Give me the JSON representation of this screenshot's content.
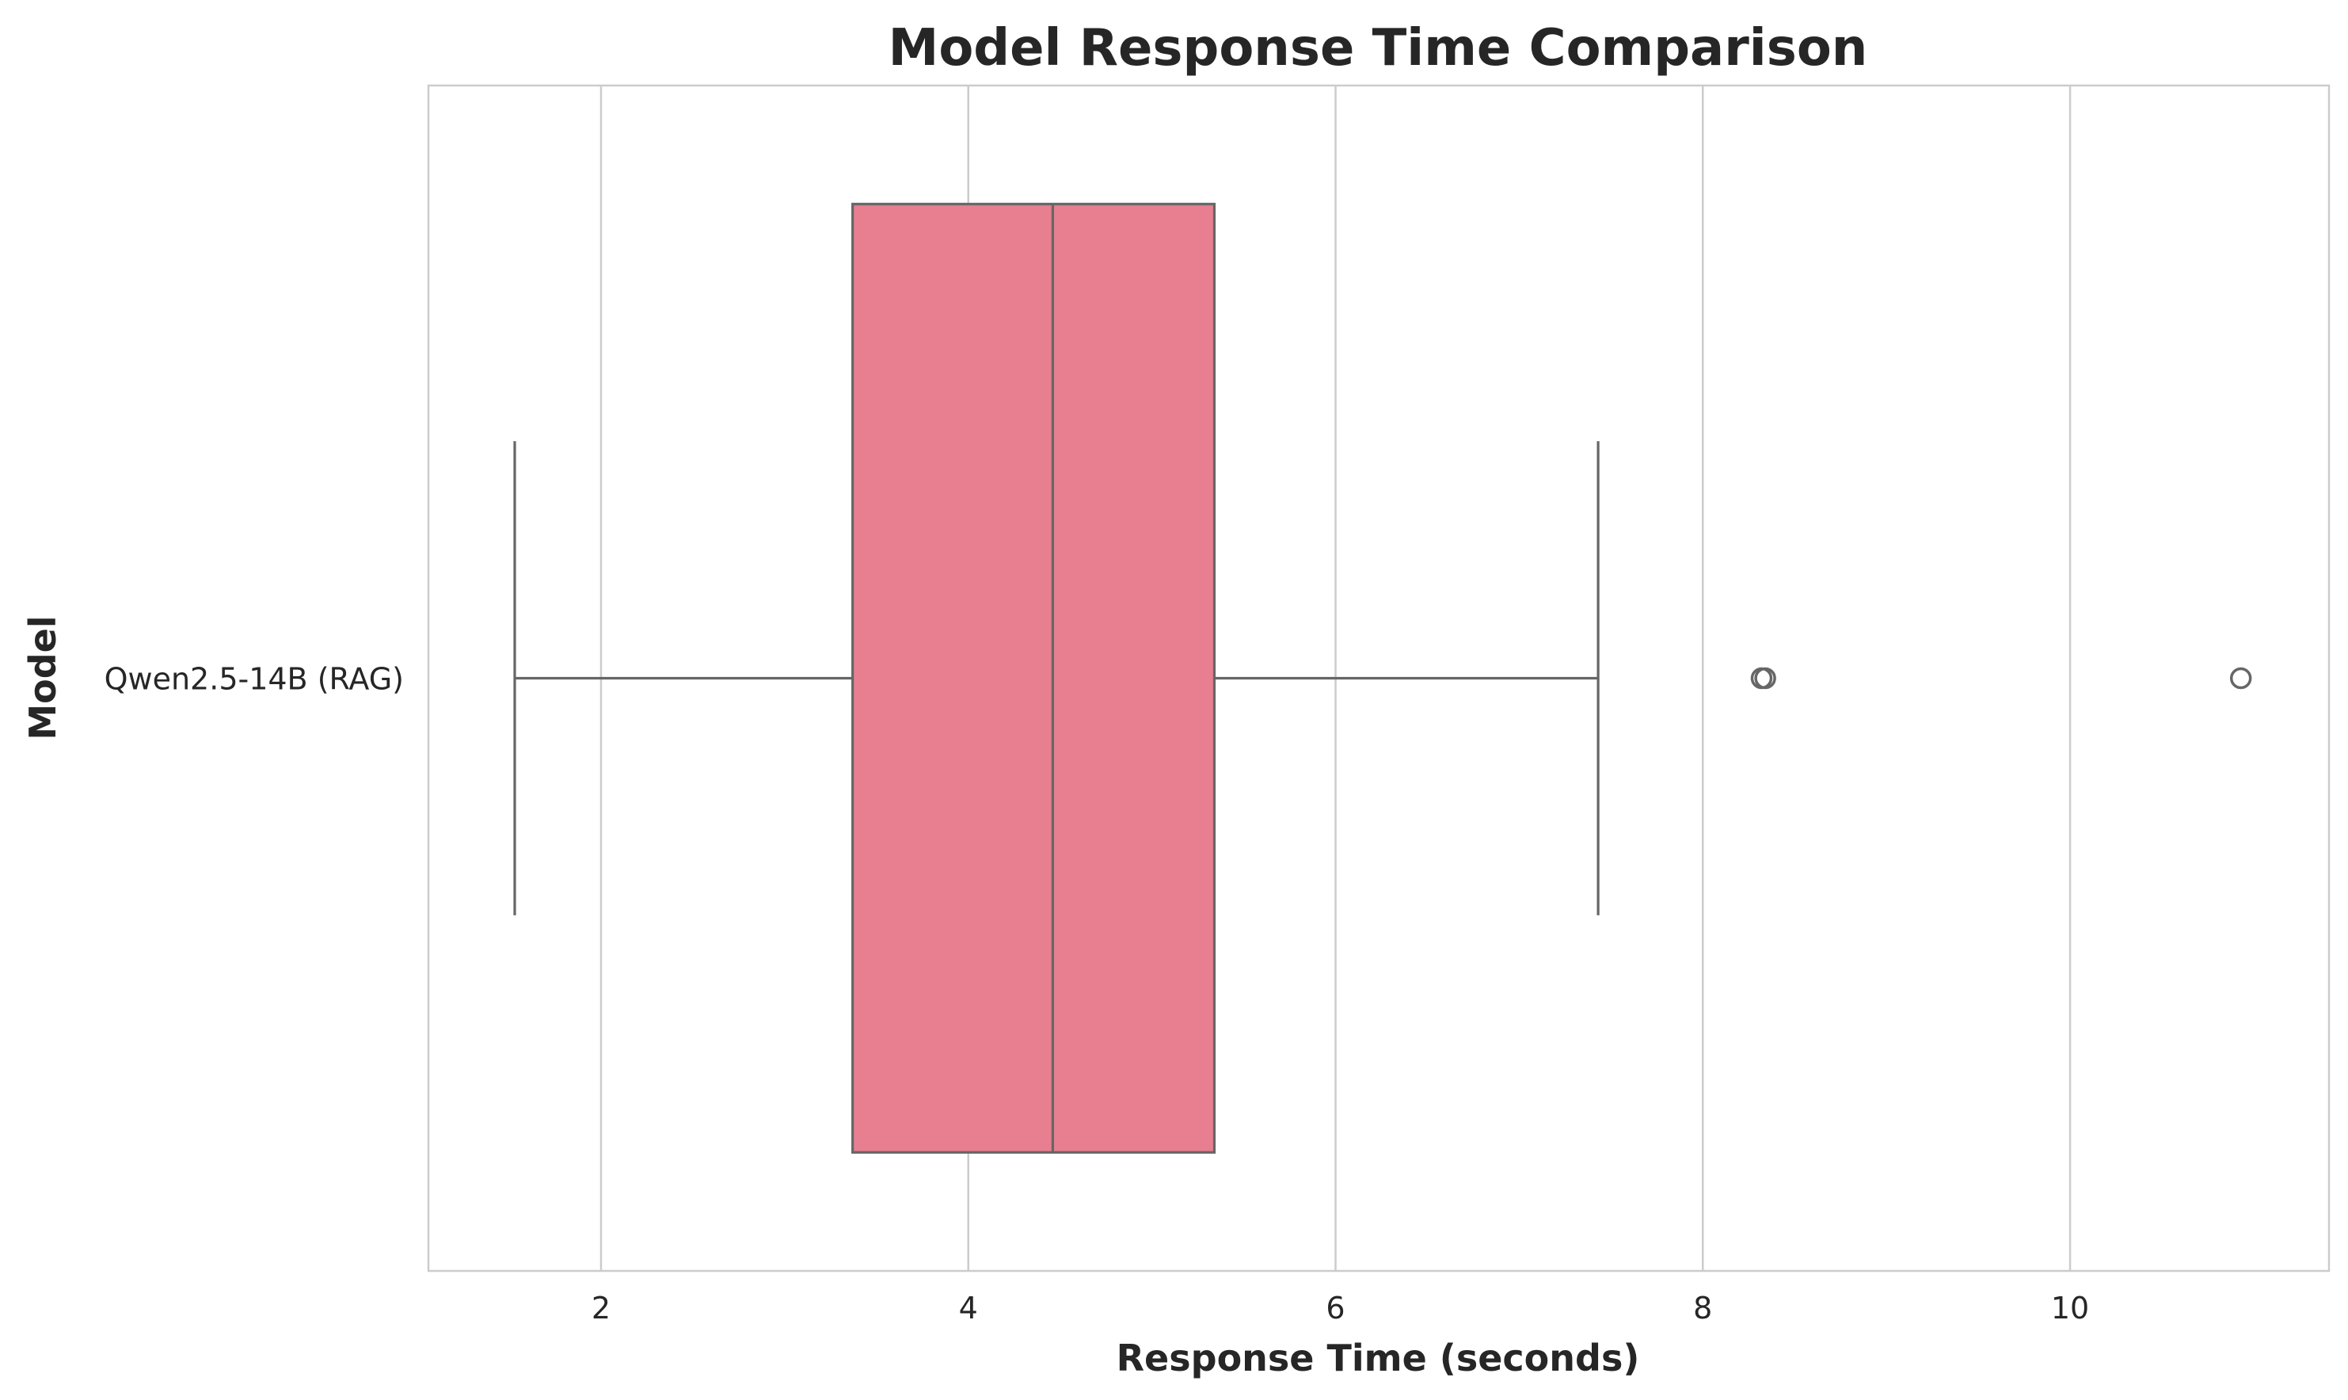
{
  "chart_data": {
    "type": "boxplot",
    "orientation": "horizontal",
    "title": "Model Response Time Comparison",
    "xlabel": "Response Time (seconds)",
    "ylabel": "Model",
    "xlim": [
      1.06,
      11.41
    ],
    "xticks": [
      2,
      4,
      6,
      8,
      10
    ],
    "grid": true,
    "categories": [
      "Qwen2.5-14B (RAG)"
    ],
    "series": [
      {
        "name": "Qwen2.5-14B (RAG)",
        "whisker_low": 1.53,
        "q1": 3.37,
        "median": 4.46,
        "q3": 5.34,
        "whisker_high": 7.43,
        "outliers": [
          8.32,
          8.34,
          10.93
        ],
        "color": "#e77f91"
      }
    ]
  }
}
